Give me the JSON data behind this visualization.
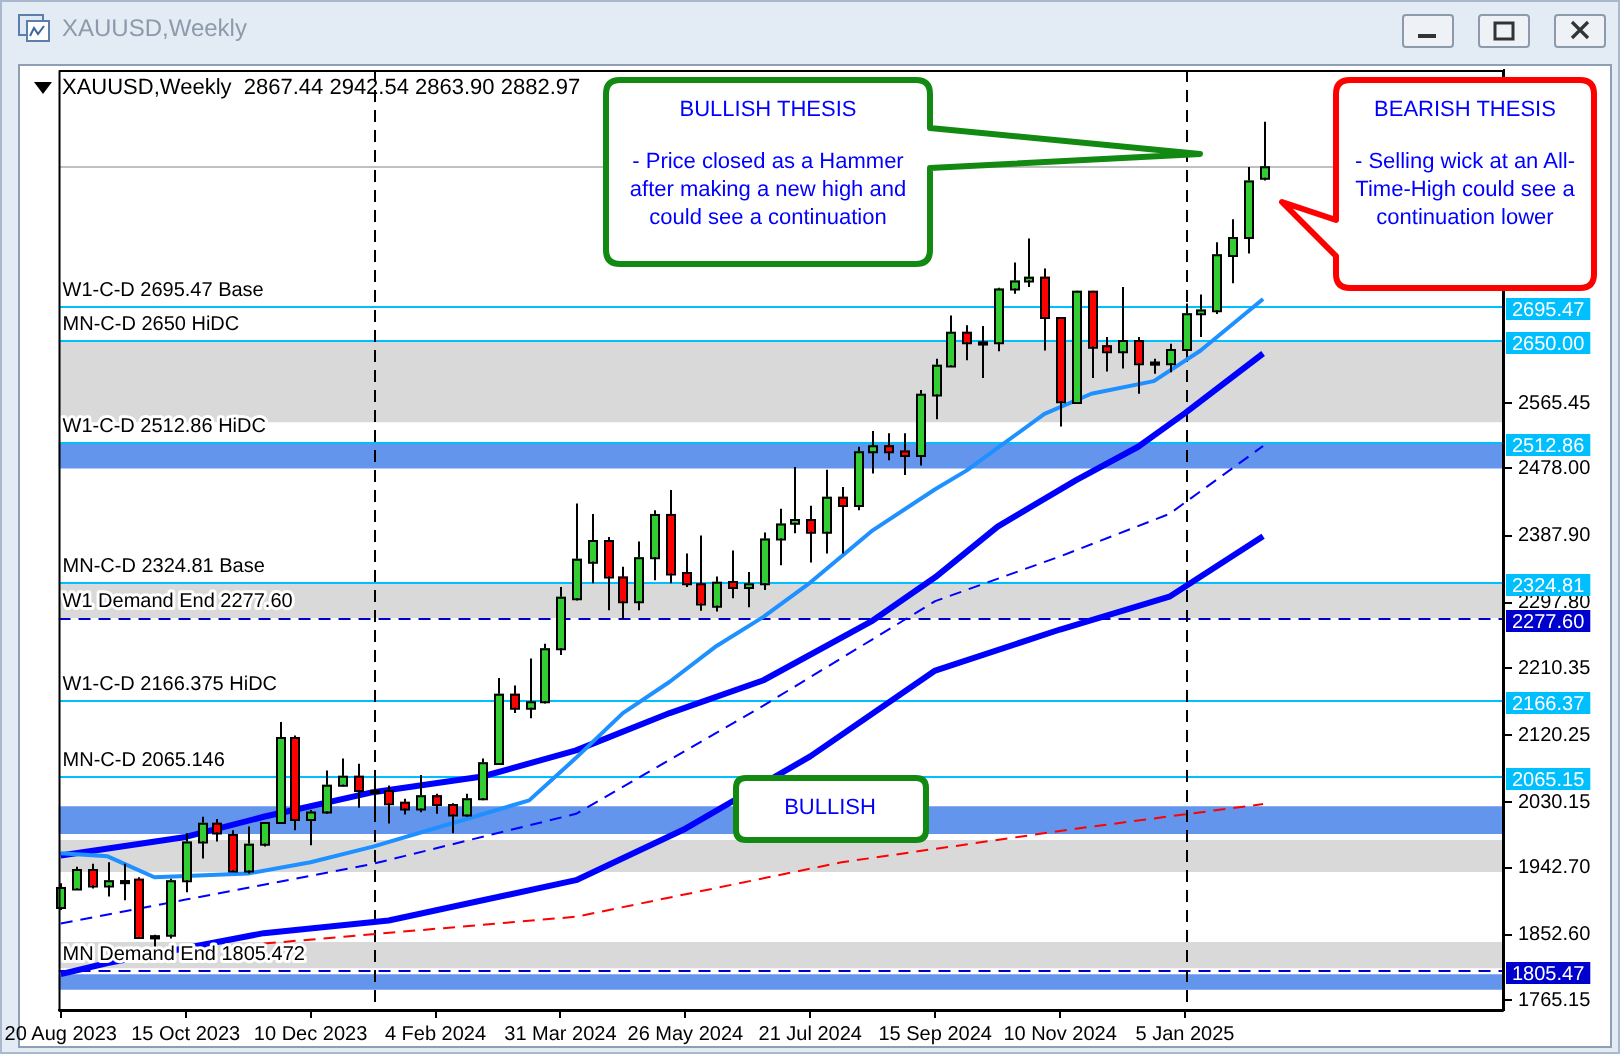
{
  "chart_data": {
    "type": "candlestick",
    "title": "XAUUSD,Weekly",
    "subtitle": "2867.44 2942.54 2863.90 2882.97",
    "x": [
      "2023-08-20",
      "2023-08-27",
      "2023-09-03",
      "2023-09-10",
      "2023-09-17",
      "2023-09-24",
      "2023-10-01",
      "2023-10-08",
      "2023-10-15",
      "2023-10-22",
      "2023-10-29",
      "2023-11-05",
      "2023-11-12",
      "2023-11-19",
      "2023-11-26",
      "2023-12-03",
      "2023-12-10",
      "2023-12-17",
      "2023-12-24",
      "2023-12-31",
      "2024-01-07",
      "2024-01-14",
      "2024-01-21",
      "2024-01-28",
      "2024-02-04",
      "2024-02-11",
      "2024-02-18",
      "2024-02-25",
      "2024-03-03",
      "2024-03-10",
      "2024-03-17",
      "2024-03-24",
      "2024-03-31",
      "2024-04-07",
      "2024-04-14",
      "2024-04-21",
      "2024-04-28",
      "2024-05-05",
      "2024-05-12",
      "2024-05-19",
      "2024-05-26",
      "2024-06-02",
      "2024-06-09",
      "2024-06-16",
      "2024-06-23",
      "2024-06-30",
      "2024-07-07",
      "2024-07-14",
      "2024-07-21",
      "2024-07-28",
      "2024-08-04",
      "2024-08-11",
      "2024-08-18",
      "2024-08-25",
      "2024-09-01",
      "2024-09-08",
      "2024-09-15",
      "2024-09-22",
      "2024-09-29",
      "2024-10-06",
      "2024-10-13",
      "2024-10-20",
      "2024-10-27",
      "2024-11-03",
      "2024-11-10",
      "2024-11-17",
      "2024-11-24",
      "2024-12-01",
      "2024-12-08",
      "2024-12-15",
      "2024-12-22",
      "2024-12-29",
      "2025-01-05",
      "2025-01-12",
      "2025-01-19",
      "2025-01-26",
      "2025-02-02",
      "2025-02-09"
    ],
    "ohlc": [
      [
        1890,
        1922,
        1886,
        1917
      ],
      [
        1915,
        1944,
        1913,
        1941
      ],
      [
        1941,
        1948,
        1915,
        1919
      ],
      [
        1919,
        1950,
        1904,
        1926
      ],
      [
        1926,
        1948,
        1899,
        1925
      ],
      [
        1928,
        1930,
        1848,
        1850
      ],
      [
        1852,
        1853,
        1819,
        1851
      ],
      [
        1853,
        1928,
        1848,
        1926
      ],
      [
        1926,
        1989,
        1910,
        1978
      ],
      [
        1978,
        2011,
        1955,
        2003
      ],
      [
        2003,
        2008,
        1978,
        1990
      ],
      [
        1988,
        1993,
        1938,
        1939
      ],
      [
        1939,
        1998,
        1935,
        1975
      ],
      [
        1975,
        2004,
        1971,
        2004
      ],
      [
        2004,
        2138,
        2002,
        2118
      ],
      [
        2118,
        2120,
        1993,
        2008
      ],
      [
        2008,
        2020,
        1973,
        2018
      ],
      [
        2018,
        2073,
        2015,
        2054
      ],
      [
        2054,
        2089,
        2052,
        2066
      ],
      [
        2066,
        2082,
        2023,
        2047
      ],
      [
        2047,
        2060,
        2013,
        2046
      ],
      [
        2047,
        2053,
        2002,
        2029
      ],
      [
        2031,
        2035,
        2014,
        2022
      ],
      [
        2022,
        2067,
        2017,
        2040
      ],
      [
        2040,
        2042,
        2015,
        2028
      ],
      [
        2028,
        2029,
        1989,
        2014
      ],
      [
        2014,
        2042,
        2011,
        2036
      ],
      [
        2036,
        2089,
        2033,
        2084
      ],
      [
        2083,
        2197,
        2082,
        2176
      ],
      [
        2176,
        2187,
        2150,
        2157
      ],
      [
        2157,
        2223,
        2143,
        2166
      ],
      [
        2166,
        2243,
        2163,
        2237
      ],
      [
        2237,
        2319,
        2228,
        2306
      ],
      [
        2304,
        2431,
        2301,
        2357
      ],
      [
        2353,
        2417,
        2324,
        2382
      ],
      [
        2382,
        2386,
        2288,
        2333
      ],
      [
        2333,
        2346,
        2276,
        2300
      ],
      [
        2300,
        2380,
        2288,
        2359
      ],
      [
        2359,
        2422,
        2328,
        2417
      ],
      [
        2417,
        2449,
        2324,
        2337
      ],
      [
        2339,
        2364,
        2319,
        2324
      ],
      [
        2324,
        2388,
        2287,
        2297
      ],
      [
        2294,
        2333,
        2286,
        2326
      ],
      [
        2327,
        2368,
        2304,
        2319
      ],
      [
        2319,
        2339,
        2292,
        2324
      ],
      [
        2324,
        2392,
        2315,
        2384
      ],
      [
        2384,
        2424,
        2348,
        2404
      ],
      [
        2405,
        2480,
        2391,
        2410
      ],
      [
        2410,
        2428,
        2352,
        2393
      ],
      [
        2393,
        2476,
        2364,
        2440
      ],
      [
        2440,
        2453,
        2364,
        2429
      ],
      [
        2429,
        2507,
        2422,
        2501
      ],
      [
        2501,
        2528,
        2471,
        2509
      ],
      [
        2509,
        2525,
        2489,
        2501
      ],
      [
        2502,
        2525,
        2469,
        2496
      ],
      [
        2496,
        2583,
        2482,
        2578
      ],
      [
        2577,
        2625,
        2544,
        2617
      ],
      [
        2616,
        2683,
        2614,
        2661
      ],
      [
        2661,
        2670,
        2623,
        2647
      ],
      [
        2648,
        2669,
        2599,
        2647
      ],
      [
        2647,
        2720,
        2635,
        2719
      ],
      [
        2719,
        2754,
        2712,
        2730
      ],
      [
        2730,
        2786,
        2721,
        2735
      ],
      [
        2735,
        2746,
        2636,
        2681
      ],
      [
        2681,
        2681,
        2534,
        2568
      ],
      [
        2567,
        2716,
        2565,
        2716
      ],
      [
        2716,
        2716,
        2599,
        2641
      ],
      [
        2643,
        2654,
        2608,
        2635
      ],
      [
        2635,
        2721,
        2612,
        2650
      ],
      [
        2650,
        2654,
        2578,
        2619
      ],
      [
        2621,
        2625,
        2605,
        2621
      ],
      [
        2619,
        2645,
        2607,
        2638
      ],
      [
        2638,
        2699,
        2636,
        2686
      ],
      [
        2686,
        2711,
        2654,
        2691
      ],
      [
        2690,
        2781,
        2685,
        2765
      ],
      [
        2764,
        2812,
        2726,
        2788
      ],
      [
        2788,
        2882,
        2766,
        2864
      ],
      [
        2867.44,
        2942.54,
        2863.9,
        2882.97
      ]
    ],
    "colors": [
      "#32cd32",
      "#32cd32",
      "#ff0000",
      "#32cd32",
      "#000000",
      "#ff0000",
      "#000000",
      "#32cd32",
      "#32cd32",
      "#32cd32",
      "#ff0000",
      "#ff0000",
      "#32cd32",
      "#32cd32",
      "#32cd32",
      "#ff0000",
      "#32cd32",
      "#32cd32",
      "#32cd32",
      "#ff0000",
      "#000000",
      "#ff0000",
      "#ff0000",
      "#32cd32",
      "#ff0000",
      "#ff0000",
      "#32cd32",
      "#32cd32",
      "#32cd32",
      "#ff0000",
      "#32cd32",
      "#32cd32",
      "#32cd32",
      "#32cd32",
      "#32cd32",
      "#ff0000",
      "#ff0000",
      "#32cd32",
      "#32cd32",
      "#ff0000",
      "#ff0000",
      "#ff0000",
      "#32cd32",
      "#ff0000",
      "#32cd32",
      "#32cd32",
      "#32cd32",
      "#32cd32",
      "#ff0000",
      "#32cd32",
      "#ff0000",
      "#32cd32",
      "#32cd32",
      "#ff0000",
      "#ff0000",
      "#32cd32",
      "#32cd32",
      "#32cd32",
      "#ff0000",
      "#000000",
      "#32cd32",
      "#32cd32",
      "#32cd32",
      "#ff0000",
      "#ff0000",
      "#32cd32",
      "#ff0000",
      "#ff0000",
      "#32cd32",
      "#ff0000",
      "#000000",
      "#32cd32",
      "#32cd32",
      "#32cd32",
      "#32cd32",
      "#32cd32",
      "#32cd32",
      "#32cd32"
    ],
    "series": [
      {
        "type": "line",
        "color": "#1e90ff",
        "line_style": "solid",
        "x": [
          "2023-08-20",
          "2023-09-10",
          "2023-10-01",
          "2023-11-12",
          "2023-12-10",
          "2024-01-07",
          "2024-02-11",
          "2024-03-17",
          "2024-04-07",
          "2024-04-28",
          "2024-05-19",
          "2024-06-09",
          "2024-06-30",
          "2024-07-21",
          "2024-08-18",
          "2024-09-15",
          "2024-09-29",
          "2024-11-03",
          "2024-11-24",
          "2024-12-22",
          "2025-01-12",
          "2025-02-09"
        ],
        "values": [
          1962,
          1958,
          1930,
          1935,
          1950,
          1971,
          2002,
          2033,
          2090,
          2150,
          2192,
          2240,
          2279,
          2325,
          2395,
          2450,
          2475,
          2551,
          2578,
          2595,
          2636,
          2705
        ]
      },
      {
        "type": "line",
        "color": "#0000ff",
        "line_style": "solid",
        "x": [
          "2023-08-20",
          "2023-10-15",
          "2023-11-19",
          "2024-01-07",
          "2024-02-25",
          "2024-04-07",
          "2024-05-19",
          "2024-06-30",
          "2024-08-18",
          "2024-09-15",
          "2024-10-13",
          "2024-11-17",
          "2024-12-15",
          "2025-01-05",
          "2025-02-09"
        ],
        "values": [
          1959,
          1984,
          2011,
          2044,
          2065,
          2100,
          2150,
          2194,
          2274,
          2332,
          2400,
          2462,
          2507,
          2552,
          2632
        ]
      },
      {
        "type": "line",
        "color": "#0000ff",
        "line_style": "dashed",
        "x": [
          "2023-08-20",
          "2023-10-15",
          "2024-01-07",
          "2024-04-07",
          "2024-06-30",
          "2024-09-15",
          "2024-11-10",
          "2024-12-29",
          "2025-02-09"
        ],
        "values": [
          1868,
          1900,
          1948,
          2015,
          2160,
          2300,
          2360,
          2417,
          2508
        ]
      },
      {
        "type": "line",
        "color": "#0000ff",
        "line_style": "solid",
        "x": [
          "2023-08-20",
          "2023-09-10",
          "2023-11-19",
          "2024-01-14",
          "2024-04-07",
          "2024-05-26",
          "2024-07-21",
          "2024-09-15",
          "2024-11-10",
          "2024-12-29",
          "2025-02-09"
        ],
        "values": [
          1800,
          1815,
          1855,
          1872,
          1926,
          1995,
          2092,
          2207,
          2262,
          2306,
          2387
        ]
      },
      {
        "type": "line",
        "color": "#ff0000",
        "line_style": "dashed",
        "x": [
          "2023-11-19",
          "2024-04-07",
          "2024-08-04",
          "2024-11-17",
          "2025-02-09"
        ],
        "values": [
          1841,
          1877,
          1950,
          1995,
          2028
        ]
      }
    ],
    "xlim": [
      "2023-08-19",
      "2025-05-28"
    ],
    "xticks": [
      {
        "value": "2023-08-20",
        "label": "20 Aug 2023"
      },
      {
        "value": "2023-10-15",
        "label": "15 Oct 2023"
      },
      {
        "value": "2023-12-10",
        "label": "10 Dec 2023"
      },
      {
        "value": "2024-02-04",
        "label": "4 Feb 2024"
      },
      {
        "value": "2024-03-31",
        "label": "31 Mar 2024"
      },
      {
        "value": "2024-05-26",
        "label": "26 May 2024"
      },
      {
        "value": "2024-07-21",
        "label": "21 Jul 2024"
      },
      {
        "value": "2024-09-15",
        "label": "15 Sep 2024"
      },
      {
        "value": "2024-11-10",
        "label": "10 Nov 2024"
      },
      {
        "value": "2025-01-05",
        "label": "5 Jan 2025"
      }
    ],
    "ylim": [
      1752,
      3012
    ],
    "yticks": [
      1765.15,
      {
        "value": 1852.6,
        "label": "1852.60"
      },
      {
        "value": 1942.7,
        "label": "1942.70"
      },
      2030.15,
      2120.25,
      2210.35,
      {
        "value": 2297.8,
        "label": "2297.80"
      },
      {
        "value": 2387.9,
        "label": "2387.90"
      },
      {
        "value": 2478,
        "label": "2478.00"
      },
      2565.45
    ],
    "bands": [
      {
        "axis": "y",
        "from": 2478,
        "to": 2512.86,
        "color": "#6495ed"
      },
      {
        "axis": "y",
        "from": 2540,
        "to": 2650,
        "color": "#d9d9d9"
      },
      {
        "axis": "y",
        "from": 2277.6,
        "to": 2324.81,
        "color": "#d9d9d9"
      },
      {
        "axis": "y",
        "from": 1988,
        "to": 2025,
        "color": "#6495ed"
      },
      {
        "axis": "y",
        "from": 1937,
        "to": 1980,
        "color": "#d9d9d9"
      },
      {
        "axis": "y",
        "from": 1808,
        "to": 1843,
        "color": "#d9d9d9"
      },
      {
        "axis": "y",
        "from": 1779,
        "to": 1800,
        "color": "#6495ed"
      }
    ],
    "ref_lines": [
      {
        "axis": "y",
        "value": 2695.47,
        "label": "W1-C-D 2695.47 Base",
        "color": "#00bfff",
        "line_style": "solid"
      },
      {
        "axis": "y",
        "value": 2650,
        "label": "MN-C-D 2650 HiDC",
        "color": "#00bfff",
        "line_style": "solid"
      },
      {
        "axis": "y",
        "value": 2512.86,
        "label": "W1-C-D 2512.86 HiDC",
        "color": "#00bfff",
        "line_style": "solid"
      },
      {
        "axis": "y",
        "value": 2324.81,
        "label": "MN-C-D 2324.81 Base",
        "color": "#00bfff",
        "line_style": "solid"
      },
      {
        "axis": "y",
        "value": 2277.6,
        "label": "W1 Demand End 2277.60",
        "color": "#0000cd",
        "line_style": "dashed"
      },
      {
        "axis": "y",
        "value": 2166.375,
        "label": "W1-C-D 2166.375 HiDC",
        "color": "#00bfff",
        "line_style": "solid"
      },
      {
        "axis": "y",
        "value": 2065.146,
        "label": "MN-C-D 2065.146",
        "color": "#00bfff",
        "line_style": "solid"
      },
      {
        "axis": "y",
        "value": 1805.472,
        "label": "MN Demand End 1805.472",
        "color": "#0000cd",
        "line_style": "dashed"
      },
      {
        "axis": "y",
        "value": 2882.97,
        "color": "#c0c0c0",
        "line_style": "solid"
      },
      {
        "axis": "x",
        "value": "2024-01-07",
        "color": "#000000",
        "line_style": "dashed"
      },
      {
        "axis": "x",
        "value": "2025-01-05",
        "color": "#000000",
        "line_style": "dashed"
      }
    ],
    "annotations": [
      "BULLISH THESIS",
      "- Price closed as a Hammer after making a new high and could see a continuation",
      "BEARISH THESIS",
      "- Selling wick at an All-Time-High could see a continuation lower",
      "BULLISH",
      "2695.47",
      "2650.00",
      "2512.86",
      "2324.81",
      "2277.60",
      "2166.37",
      "2065.15",
      "1805.47"
    ],
    "grid": false,
    "legend": false,
    "marker": "none"
  }
}
